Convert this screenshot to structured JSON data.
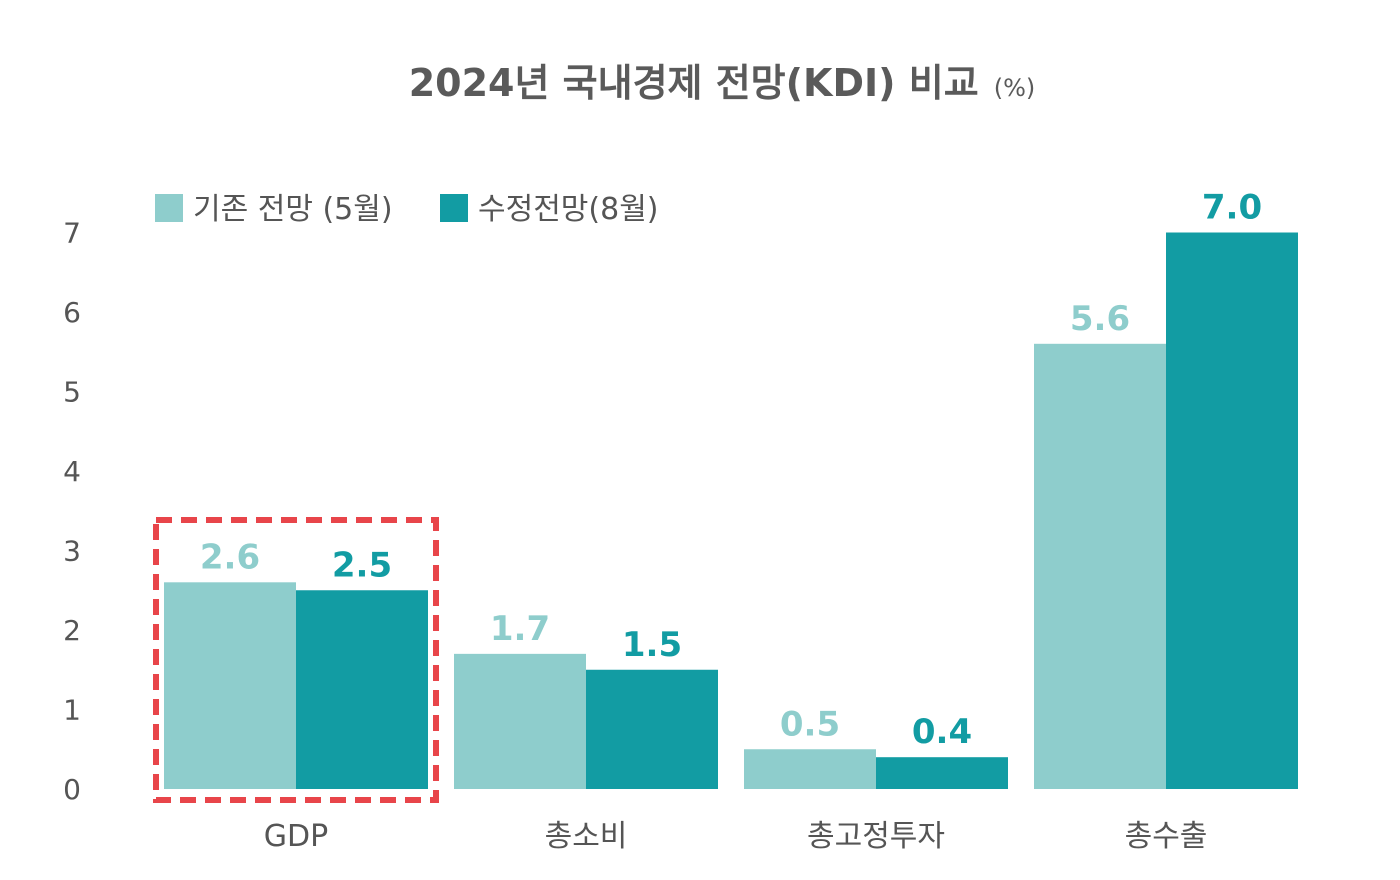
{
  "chart_data": {
    "type": "bar",
    "title": "2024년 국내경제 전망(KDI) 비교",
    "title_unit": "(%)",
    "categories": [
      "GDP",
      "총소비",
      "총고정투자",
      "총수출"
    ],
    "series": [
      {
        "name": "기존 전망 (5월)",
        "values": [
          2.6,
          1.7,
          0.5,
          5.6
        ],
        "value_labels": [
          "2.6",
          "1.7",
          "0.5",
          "5.6"
        ],
        "color": "#8ecdcc"
      },
      {
        "name": "수정전망(8월)",
        "values": [
          2.5,
          1.5,
          0.4,
          7.0
        ],
        "value_labels": [
          "2.5",
          "1.5",
          "0.4",
          "7.0"
        ],
        "color": "#129ca3"
      }
    ],
    "yticks": [
      "0",
      "1",
      "2",
      "3",
      "4",
      "5",
      "6",
      "7"
    ],
    "ylim": [
      0,
      7
    ],
    "grid": false,
    "legend_position": "top-left",
    "highlight": {
      "category": "GDP",
      "style": "dashed-box",
      "color": "#e8454a"
    }
  }
}
